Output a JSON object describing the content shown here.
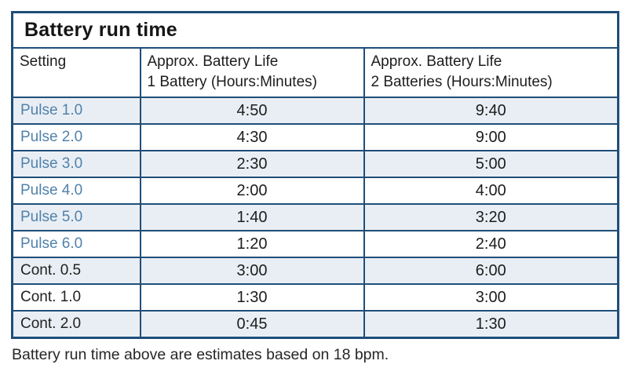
{
  "title": "Battery run time",
  "table": {
    "columns": [
      {
        "label": "Setting"
      },
      {
        "line1": "Approx. Battery Life",
        "line2": "1 Battery (Hours:Minutes)"
      },
      {
        "line1": "Approx. Battery Life",
        "line2": "2 Batteries (Hours:Minutes)"
      }
    ],
    "rows": [
      {
        "setting": "Pulse 1.0",
        "one_battery": "4:50",
        "two_batteries": "9:40",
        "type": "pulse"
      },
      {
        "setting": "Pulse 2.0",
        "one_battery": "4:30",
        "two_batteries": "9:00",
        "type": "pulse"
      },
      {
        "setting": "Pulse 3.0",
        "one_battery": "2:30",
        "two_batteries": "5:00",
        "type": "pulse"
      },
      {
        "setting": "Pulse 4.0",
        "one_battery": "2:00",
        "two_batteries": "4:00",
        "type": "pulse"
      },
      {
        "setting": "Pulse 5.0",
        "one_battery": "1:40",
        "two_batteries": "3:20",
        "type": "pulse"
      },
      {
        "setting": "Pulse 6.0",
        "one_battery": "1:20",
        "two_batteries": "2:40",
        "type": "pulse"
      },
      {
        "setting": "Cont. 0.5",
        "one_battery": "3:00",
        "two_batteries": "6:00",
        "type": "cont"
      },
      {
        "setting": "Cont. 1.0",
        "one_battery": "1:30",
        "two_batteries": "3:00",
        "type": "cont"
      },
      {
        "setting": "Cont. 2.0",
        "one_battery": "0:45",
        "two_batteries": "1:30",
        "type": "cont"
      }
    ]
  },
  "footnote": "Battery run time above are estimates based on 18 bpm.",
  "colors": {
    "border": "#1f4e79",
    "pulse_label_text": "#5082ab",
    "row_stripe": "#e9eef4",
    "row_plain": "#ffffff",
    "text": "#1d1d1d"
  },
  "chart_data": {
    "type": "table",
    "title": "Battery run time",
    "categories": [
      "Pulse 1.0",
      "Pulse 2.0",
      "Pulse 3.0",
      "Pulse 4.0",
      "Pulse 5.0",
      "Pulse 6.0",
      "Cont. 0.5",
      "Cont. 1.0",
      "Cont. 2.0"
    ],
    "series": [
      {
        "name": "Approx. Battery Life 1 Battery (Hours:Minutes)",
        "values": [
          "4:50",
          "4:30",
          "2:30",
          "2:00",
          "1:40",
          "1:20",
          "3:00",
          "1:30",
          "0:45"
        ]
      },
      {
        "name": "Approx. Battery Life 2 Batteries (Hours:Minutes)",
        "values": [
          "9:40",
          "9:00",
          "5:00",
          "4:00",
          "3:20",
          "2:40",
          "6:00",
          "3:00",
          "1:30"
        ]
      }
    ],
    "annotations": [
      "Battery run time above are estimates based on 18 bpm."
    ]
  }
}
